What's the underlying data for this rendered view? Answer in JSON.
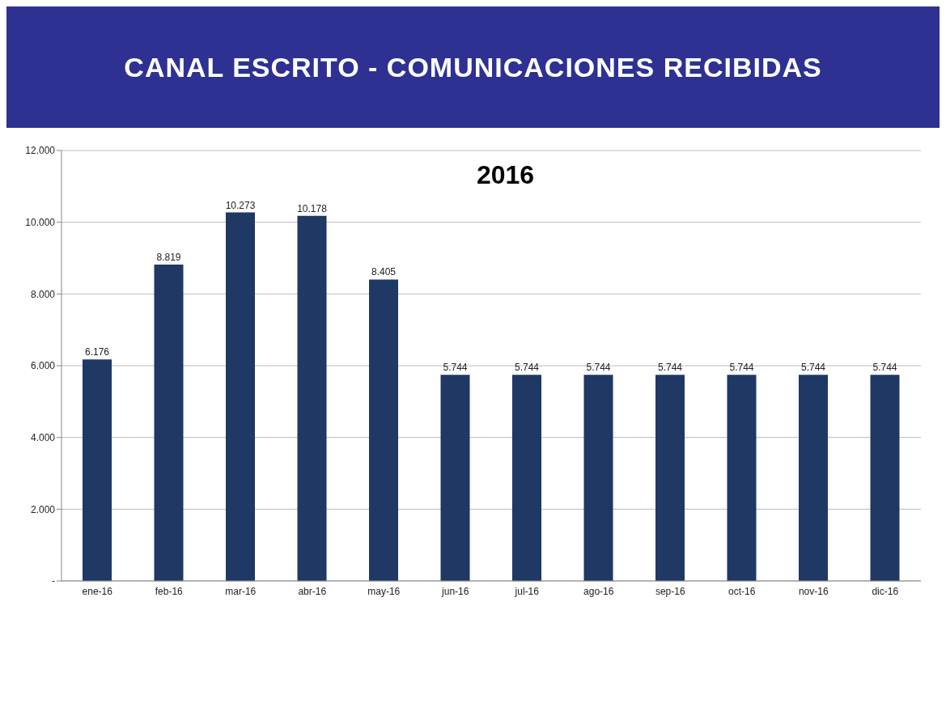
{
  "chart_data": {
    "type": "bar",
    "title": "CANAL ESCRITO - COMUNICACIONES RECIBIDAS",
    "subtitle": "2016",
    "categories": [
      "ene-16",
      "feb-16",
      "mar-16",
      "abr-16",
      "may-16",
      "jun-16",
      "jul-16",
      "ago-16",
      "sep-16",
      "oct-16",
      "nov-16",
      "dic-16"
    ],
    "values": [
      6176,
      8819,
      10273,
      10178,
      8405,
      5744,
      5744,
      5744,
      5744,
      5744,
      5744,
      5744
    ],
    "value_labels": [
      "6.176",
      "8.819",
      "10.273",
      "10.178",
      "8.405",
      "5.744",
      "5.744",
      "5.744",
      "5.744",
      "5.744",
      "5.744",
      "5.744"
    ],
    "color": "#1f3864",
    "ylim": [
      0,
      12000
    ],
    "yticks": [
      {
        "value": 0,
        "label": "-"
      },
      {
        "value": 2000,
        "label": "2.000"
      },
      {
        "value": 4000,
        "label": "4.000"
      },
      {
        "value": 6000,
        "label": "6.000"
      },
      {
        "value": 8000,
        "label": "8.000"
      },
      {
        "value": 10000,
        "label": "10.000"
      },
      {
        "value": 12000,
        "label": "12.000"
      }
    ],
    "grid": "y",
    "legend": false
  }
}
